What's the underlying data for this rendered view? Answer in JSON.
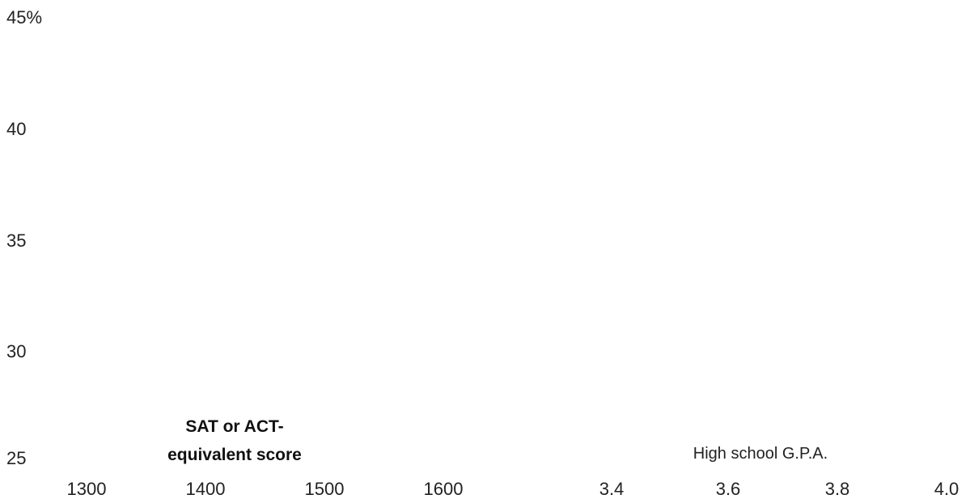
{
  "chart_data": [
    {
      "type": "line",
      "xlabel_lines": [
        "SAT or ACT-",
        "equivalent score"
      ],
      "x_ticks": [
        "1300",
        "1400",
        "1500",
        "1600"
      ],
      "y_ticks": [
        "45%",
        "40",
        "35",
        "30",
        "25"
      ],
      "xlim": [
        1300,
        1600
      ],
      "ylim": [
        25,
        45
      ],
      "grid": false,
      "series": []
    },
    {
      "type": "line",
      "xlabel": "High school G.P.A.",
      "x_ticks": [
        "3.4",
        "3.6",
        "3.8",
        "4.0"
      ],
      "xlim": [
        3.4,
        4.0
      ],
      "ylim": [
        25,
        45
      ],
      "grid": false,
      "series": []
    }
  ],
  "colors": {
    "text": "#222222",
    "background": "#ffffff"
  }
}
